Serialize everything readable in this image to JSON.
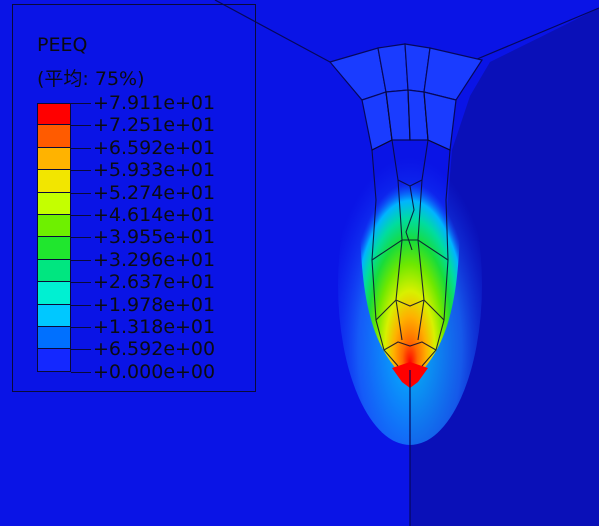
{
  "legend": {
    "title": "PEEQ",
    "subtitle": "(平均: 75%)",
    "ticks": [
      "+7.911e+01",
      "+7.251e+01",
      "+6.592e+01",
      "+5.933e+01",
      "+5.274e+01",
      "+4.614e+01",
      "+3.955e+01",
      "+3.296e+01",
      "+2.637e+01",
      "+1.978e+01",
      "+1.318e+01",
      "+6.592e+00",
      "+0.000e+00"
    ],
    "colors": [
      "#ff0000",
      "#ff5b00",
      "#ffb300",
      "#f2e600",
      "#c4ff00",
      "#6ef000",
      "#20e62e",
      "#00e680",
      "#00f0d2",
      "#00c8ff",
      "#0070ff",
      "#1428ff"
    ]
  },
  "contour": {
    "background": "#0a14e6",
    "right_body": "#0a10b8"
  }
}
